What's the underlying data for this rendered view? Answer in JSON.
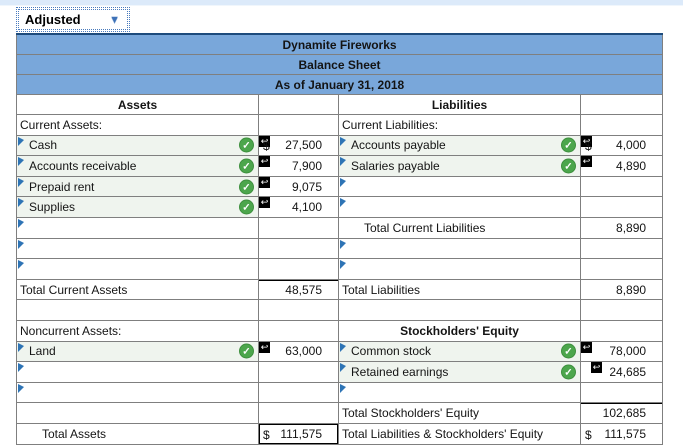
{
  "dropdown": {
    "value": "Adjusted"
  },
  "icons": {
    "dropdown": "▼",
    "check": "✓",
    "undo": "↩"
  },
  "colors": {
    "header_blue": "#79a7da",
    "header_text": "#1d3a63",
    "check_green": "#4ca64c",
    "flag_blue": "#2e74b5",
    "top_border_navy": "#1d4b7c"
  },
  "header": {
    "company": "Dynamite Fireworks",
    "statement": "Balance Sheet",
    "date": "As of January 31, 2018",
    "assets": "Assets",
    "liabilities": "Liabilities"
  },
  "rows": [
    {
      "left": {
        "type": "section",
        "label": "Current Assets:"
      },
      "right": {
        "type": "section",
        "label": "Current Liabilities:"
      }
    },
    {
      "left": {
        "type": "item",
        "label": "Cash",
        "check": true,
        "tri": true,
        "arrow": true,
        "dollar": "$",
        "value": "27,500"
      },
      "right": {
        "type": "item",
        "label": "Accounts payable",
        "check": true,
        "tri": true,
        "arrow": true,
        "dollar": "$",
        "value": "4,000"
      }
    },
    {
      "left": {
        "type": "item",
        "label": "Accounts receivable",
        "check": true,
        "tri": true,
        "arrow": true,
        "value": "7,900"
      },
      "right": {
        "type": "item",
        "label": "Salaries payable",
        "check": true,
        "tri": true,
        "arrow": true,
        "value": "4,890"
      }
    },
    {
      "left": {
        "type": "item",
        "label": "Prepaid rent",
        "check": true,
        "tri": true,
        "arrow": true,
        "value": "9,075"
      },
      "right": {
        "type": "fill",
        "tri": true
      }
    },
    {
      "left": {
        "type": "item",
        "label": "Supplies",
        "check": true,
        "tri": true,
        "arrow": true,
        "value": "4,100"
      },
      "right": {
        "type": "fill",
        "tri": true
      }
    },
    {
      "left": {
        "type": "fill",
        "tri": true
      },
      "right": {
        "type": "total",
        "label": "Total Current Liabilities",
        "indent": true,
        "value": "8,890"
      }
    },
    {
      "left": {
        "type": "fill",
        "tri": true
      },
      "right": {
        "type": "fill",
        "tri": true
      }
    },
    {
      "left": {
        "type": "fill",
        "tri": true
      },
      "right": {
        "type": "fill",
        "tri": true
      }
    },
    {
      "left": {
        "type": "total",
        "label": "Total Current Assets",
        "value": "48,575",
        "rule": true
      },
      "right": {
        "type": "total",
        "label": "Total Liabilities",
        "value": "8,890"
      }
    },
    {
      "left": {
        "type": "empty"
      },
      "right": {
        "type": "empty"
      }
    },
    {
      "left": {
        "type": "section",
        "label": "Noncurrent Assets:"
      },
      "right": {
        "type": "heading",
        "label": "Stockholders' Equity"
      }
    },
    {
      "left": {
        "type": "item",
        "label": "Land",
        "check": true,
        "tri": true,
        "arrow": true,
        "value": "63,000"
      },
      "right": {
        "type": "item",
        "label": "Common stock",
        "check": true,
        "tri": true,
        "arrow": true,
        "value": "78,000"
      }
    },
    {
      "left": {
        "type": "fill",
        "tri": true
      },
      "right": {
        "type": "item",
        "label": "Retained earnings",
        "check": true,
        "tri": true,
        "arrow": true,
        "arrow_offset": true,
        "value": "24,685"
      }
    },
    {
      "left": {
        "type": "fill",
        "tri": true
      },
      "right": {
        "type": "fill",
        "tri": true
      }
    },
    {
      "left": {
        "type": "empty"
      },
      "right": {
        "type": "total",
        "label": "Total Stockholders' Equity",
        "value": "102,685",
        "rule": true
      }
    },
    {
      "left": {
        "type": "total",
        "label": "Total Assets",
        "indent": true,
        "dollar": "$",
        "value": "111,575",
        "box": true
      },
      "right": {
        "type": "total",
        "label": "Total Liabilities & Stockholders' Equity",
        "dollar": "$",
        "value": "111,575"
      }
    }
  ]
}
